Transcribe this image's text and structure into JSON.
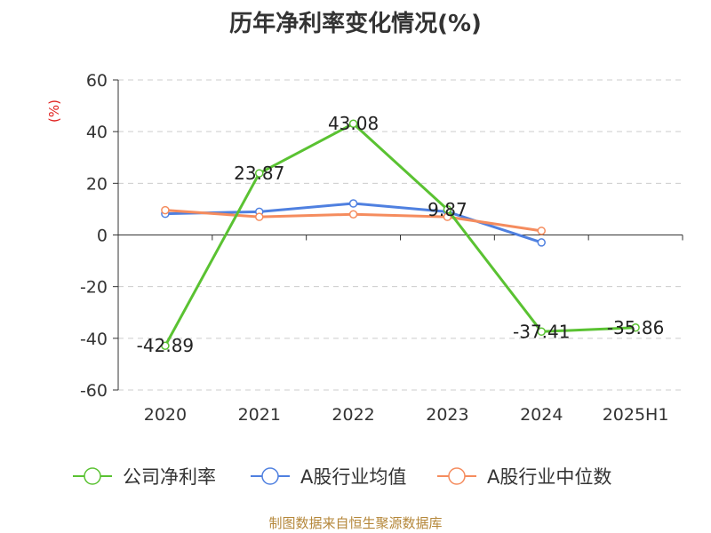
{
  "chart_data": {
    "type": "line",
    "title": "历年净利率变化情况(%)",
    "ylabel": "(%)",
    "categories": [
      "2020",
      "2021",
      "2022",
      "2023",
      "2024",
      "2025H1"
    ],
    "yticks": [
      "60",
      "40",
      "20",
      "0",
      "-20",
      "-40",
      "-60"
    ],
    "ylim": [
      -60,
      60
    ],
    "grid": true,
    "legend_position": "bottom",
    "series": [
      {
        "name": "公司净利率",
        "color": "#5ac232",
        "values": [
          -42.89,
          23.87,
          43.08,
          9.87,
          -37.41,
          -35.86
        ],
        "labels": [
          "-42.89",
          "23.87",
          "43.08",
          "9.87",
          "-37.41",
          "-35.86"
        ]
      },
      {
        "name": "A股行业均值",
        "color": "#4f80e0",
        "values": [
          8.2,
          9.0,
          12.2,
          9.0,
          -2.9,
          null
        ]
      },
      {
        "name": "A股行业中位数",
        "color": "#f58c5e",
        "values": [
          9.6,
          7.0,
          8.0,
          7.0,
          1.6,
          null
        ]
      }
    ]
  },
  "footer": {
    "source": "制图数据来自恒生聚源数据库"
  }
}
